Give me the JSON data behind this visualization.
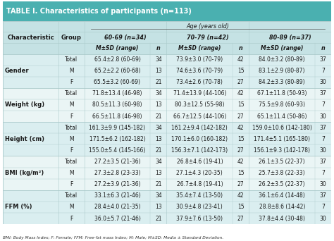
{
  "title": "TABLE I. Characteristics of participants (n=113)",
  "title_bg": "#4ab0b0",
  "title_color": "white",
  "header_age": "Age (years old)",
  "col_groups": [
    "60-69 (n=34)",
    "70-79 (n=42)",
    "80-89 (n=37)"
  ],
  "characteristics": [
    "Gender",
    "Weight (kg)",
    "Height (cm)",
    "BMI (kg/m²)",
    "FFM (%)"
  ],
  "groups": [
    "Total",
    "M",
    "F"
  ],
  "data": {
    "Gender": {
      "Total": [
        "65.4±2.8 (60-69)",
        "34",
        "73.9±3.0 (70-79)",
        "42",
        "84.0±3.2 (80-89)",
        "37"
      ],
      "M": [
        "65.2±2.2 (60-68)",
        "13",
        "74.6±3.6 (70-79)",
        "15",
        "83.1±2.9 (80-87)",
        "7"
      ],
      "F": [
        "65.5±3.2 (60-69)",
        "21",
        "73.4±2.6 (70-78)",
        "27",
        "84.2±3.3 (80-89)",
        "30"
      ]
    },
    "Weight (kg)": {
      "Total": [
        "71.8±13.4 (46-98)",
        "34",
        "71.4±13.9 (44-106)",
        "42",
        "67.1±11.8 (50-93)",
        "37"
      ],
      "M": [
        "80.5±11.3 (60-98)",
        "13",
        "80.3±12.5 (55-98)",
        "15",
        "75.5±9.8 (60-93)",
        "7"
      ],
      "F": [
        "66.5±11.8 (46-98)",
        "21",
        "66.7±12.5 (44-106)",
        "27",
        "65.1±11.4 (50-86)",
        "30"
      ]
    },
    "Height (cm)": {
      "Total": [
        "161.3±9.9 (145-182)",
        "34",
        "161.2±9.4 (142-182)",
        "42",
        "159.0±10.6 (142-180)",
        "37"
      ],
      "M": [
        "171.5±6.2 (162-182)",
        "13",
        "170.1±6.0 (160-182)",
        "15",
        "171.4±5.1 (165-180)",
        "7"
      ],
      "F": [
        "155.0±5.4 (145-166)",
        "21",
        "156.3±7.1 (142-173)",
        "27",
        "156.1±9.3 (142-178)",
        "30"
      ]
    },
    "BMI (kg/m²)": {
      "Total": [
        "27.2±3.5 (21-36)",
        "34",
        "26.8±4.6 (19-41)",
        "42",
        "26.1±3.5 (22-37)",
        "37"
      ],
      "M": [
        "27.3±2.8 (23-33)",
        "13",
        "27.1±4.3 (20-35)",
        "15",
        "25.7±3.8 (22-33)",
        "7"
      ],
      "F": [
        "27.2±3.9 (21-36)",
        "21",
        "26.7±4.8 (19-41)",
        "27",
        "26.2±3.5 (22-37)",
        "30"
      ]
    },
    "FFM (%)": {
      "Total": [
        "33.1±6.3 (21-46)",
        "34",
        "35.4±7.4 (13-50)",
        "42",
        "36.1±6.4 (14-48)",
        "37"
      ],
      "M": [
        "28.4±4.0 (21-35)",
        "13",
        "30.9±4.8 (23-41)",
        "15",
        "28.8±8.6 (14-42)",
        "7"
      ],
      "F": [
        "36.0±5.7 (21-46)",
        "21",
        "37.9±7.6 (13-50)",
        "27",
        "37.8±4.4 (30-48)",
        "30"
      ]
    }
  },
  "footnote": "BMI: Body Mass Index; F: Female; FFM: Free-fat mass Index; M: Male; M±SD: Media ± Standard Deviation.",
  "bg_light": "#daeef0",
  "bg_white": "#eaf5f5",
  "hdr_bg": "#c5e2e4",
  "text_color": "#1a1a1a",
  "line_color": "#aacaca",
  "title_fontsize": 7.0,
  "header_fontsize": 5.8,
  "data_fontsize": 5.5,
  "bold_fontsize": 6.0
}
